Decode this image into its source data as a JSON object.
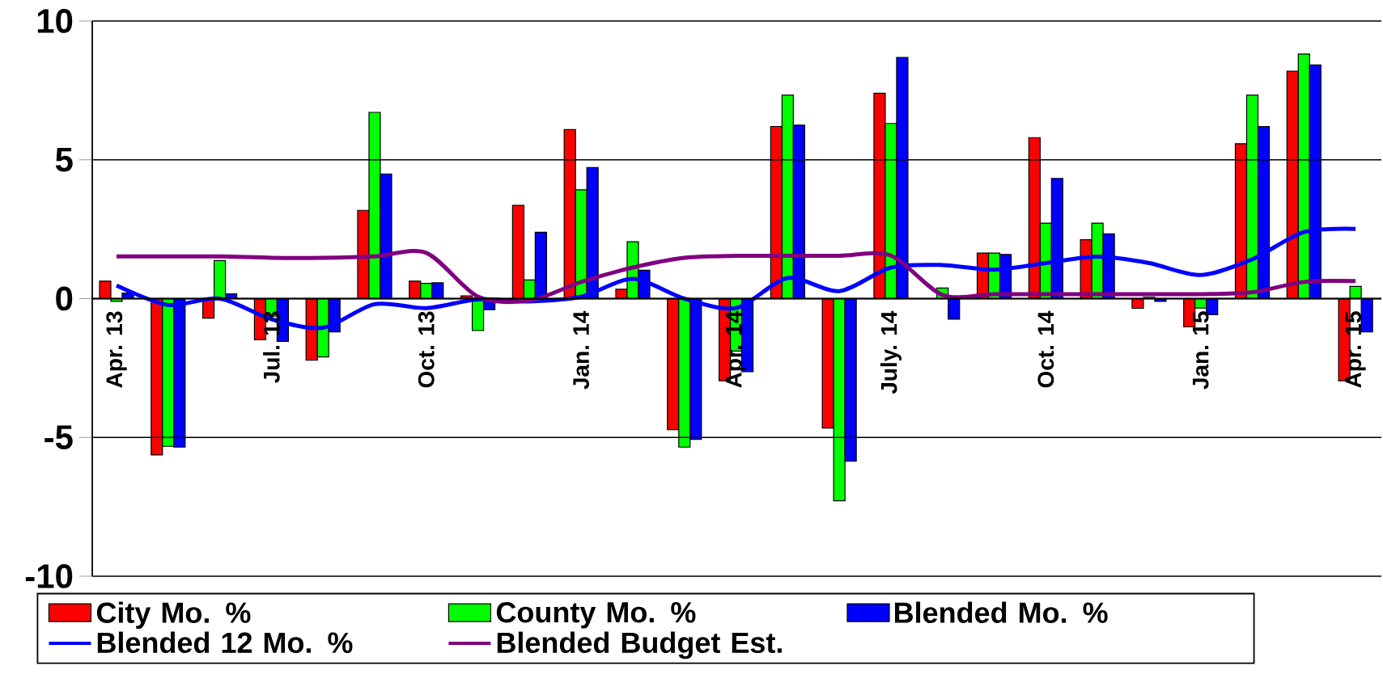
{
  "chart_data": {
    "type": "bar",
    "categories": [
      "Apr. 13",
      null,
      null,
      "Jul. 13",
      null,
      null,
      "Oct. 13",
      null,
      null,
      "Jan. 14",
      null,
      null,
      "Apr. 14",
      null,
      null,
      "July. 14",
      null,
      null,
      "Oct. 14",
      null,
      null,
      "Jan. 15",
      null,
      null,
      "Apr. 15"
    ],
    "series": [
      {
        "name": "City Mo. %",
        "color": "#ff0000",
        "values": [
          0.63,
          -5.63,
          -0.7,
          -1.48,
          -2.22,
          3.18,
          0.63,
          0.1,
          3.36,
          6.09,
          0.34,
          -4.72,
          -2.96,
          6.2,
          -4.66,
          7.4,
          null,
          1.64,
          5.8,
          2.12,
          -0.35,
          -1.02,
          5.58,
          8.19,
          -2.96
        ]
      },
      {
        "name": "County Mo. %",
        "color": "#00ff00",
        "values": [
          -0.1,
          -5.32,
          1.37,
          -0.63,
          -2.1,
          6.71,
          0.55,
          -1.15,
          0.67,
          3.92,
          2.05,
          -5.35,
          -1.89,
          7.33,
          -7.28,
          6.31,
          0.38,
          1.64,
          2.72,
          2.72,
          0.05,
          -0.34,
          7.33,
          8.81,
          0.44
        ]
      },
      {
        "name": "Blended Mo. %",
        "color": "#0000ff",
        "values": [
          0.2,
          -5.35,
          0.17,
          -1.54,
          -1.2,
          4.49,
          0.57,
          -0.4,
          2.39,
          4.72,
          1.02,
          -5.07,
          -2.63,
          6.25,
          -5.86,
          8.69,
          -0.74,
          1.59,
          4.33,
          2.33,
          -0.1,
          -0.58,
          6.2,
          8.42,
          -1.2
        ]
      },
      {
        "name": "Blended 12 Mo. %",
        "type": "line",
        "color": "#0000ff",
        "values": [
          0.47,
          -0.23,
          0,
          -0.74,
          -1.05,
          -0.2,
          -0.34,
          -0.03,
          -0.1,
          0.07,
          0.71,
          0,
          -0.34,
          0.74,
          0.27,
          1.12,
          1.21,
          1.04,
          1.28,
          1.51,
          1.28,
          0.85,
          1.42,
          2.4,
          2.51
        ]
      },
      {
        "name": "Blended Budget Est.",
        "type": "line",
        "color": "#800080",
        "values": [
          1.52,
          1.52,
          1.52,
          1.47,
          1.47,
          1.52,
          1.65,
          0.07,
          -0.07,
          0.6,
          1.12,
          1.47,
          1.54,
          1.54,
          1.54,
          1.55,
          0.13,
          0.16,
          0.16,
          0.16,
          0.16,
          0.16,
          0.23,
          0.6,
          0.63
        ]
      }
    ],
    "ylim": [
      -10,
      10
    ],
    "yticks": [
      -10,
      -5,
      0,
      5,
      10
    ],
    "grid": "y",
    "legend": "bottom",
    "marker": "none",
    "line_style": "solid"
  }
}
